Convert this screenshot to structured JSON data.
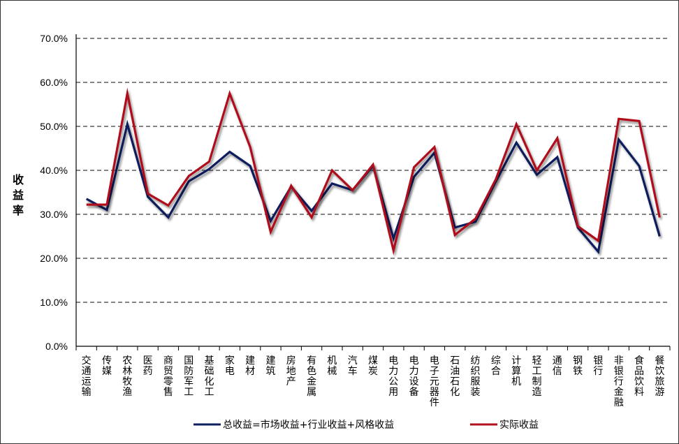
{
  "chart_data": {
    "type": "line",
    "ylabel": "收益率",
    "ylim": [
      0,
      70
    ],
    "yticks": [
      0,
      10,
      20,
      30,
      40,
      50,
      60,
      70
    ],
    "ytick_labels": [
      "0.0%",
      "10.0%",
      "20.0%",
      "30.0%",
      "40.0%",
      "50.0%",
      "60.0%",
      "70.0%"
    ],
    "grid": "horizontal-dashed",
    "legend_position": "bottom",
    "categories": [
      "交通运输",
      "传媒",
      "农林牧渔",
      "医药",
      "商贸零售",
      "国防军工",
      "基础化工",
      "家电",
      "建材",
      "建筑",
      "房地产",
      "有色金属",
      "机械",
      "汽车",
      "煤炭",
      "电力公用",
      "电力设备",
      "电子元器件",
      "石油石化",
      "纺织服装",
      "综合",
      "计算机",
      "轻工制造",
      "通信",
      "钢铁",
      "银行",
      "非银行金融",
      "食品饮料",
      "餐饮旅游"
    ],
    "series": [
      {
        "name": "总收益=市场收益+行业收益+风格收益",
        "color": "#0d1f5c",
        "values": [
          33.5,
          31.0,
          50.5,
          34.0,
          29.3,
          37.5,
          40.3,
          44.2,
          41.0,
          28.5,
          36.3,
          30.8,
          37.0,
          35.5,
          41.0,
          24.5,
          38.5,
          44.0,
          27.0,
          28.3,
          37.5,
          46.3,
          39.0,
          43.0,
          27.0,
          21.5,
          47.0,
          41.0,
          25.0
        ]
      },
      {
        "name": "实际收益",
        "color": "#b0101c",
        "values": [
          32.2,
          32.2,
          57.5,
          34.7,
          32.0,
          38.7,
          42.0,
          57.5,
          45.3,
          26.0,
          36.5,
          29.3,
          40.0,
          35.5,
          41.3,
          21.8,
          40.7,
          45.3,
          25.3,
          29.0,
          38.0,
          50.5,
          40.0,
          47.3,
          27.3,
          24.0,
          51.7,
          51.2,
          29.3
        ]
      }
    ]
  }
}
